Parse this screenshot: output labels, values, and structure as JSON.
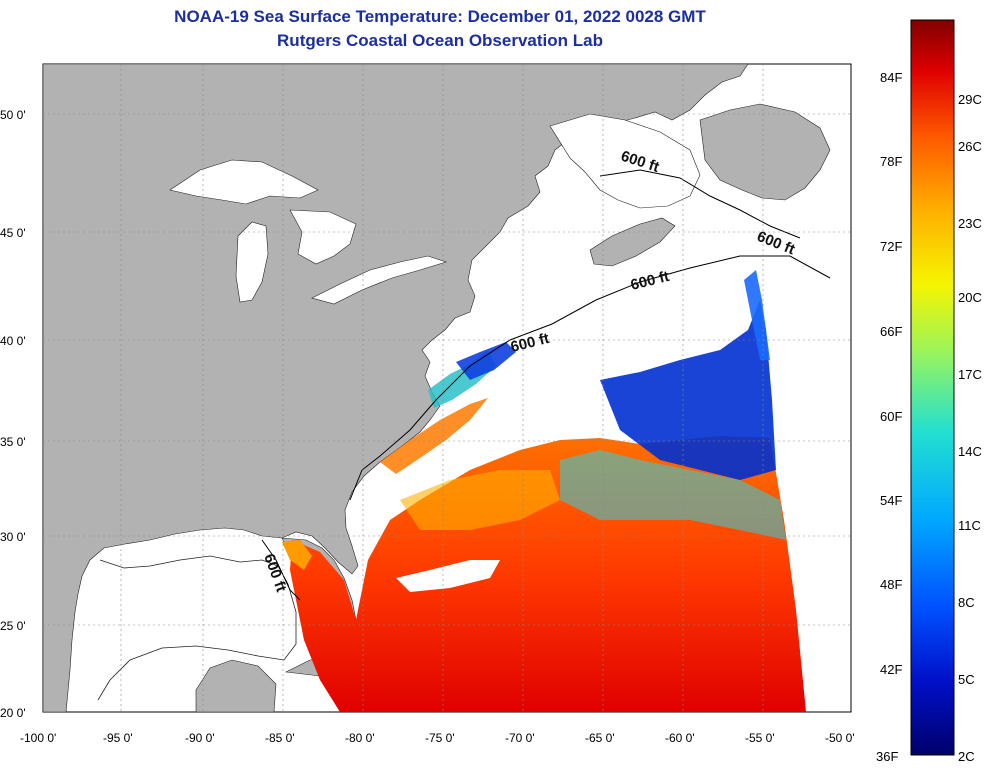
{
  "title": {
    "line1": "NOAA-19 Sea Surface Temperature:  December 01, 2022 0028 GMT",
    "line2": "Rutgers Coastal Ocean Observation Lab"
  },
  "map": {
    "lat_labels": [
      "50 0'",
      "45 0'",
      "40 0'",
      "35 0'",
      "30 0'",
      "25 0'",
      "20 0'"
    ],
    "lon_labels": [
      "-100 0'",
      "-95 0'",
      "-90 0'",
      "-85 0'",
      "-80 0'",
      "-75 0'",
      "-70 0'",
      "-65 0'",
      "-60 0'",
      "-55 0'",
      "-50 0'"
    ],
    "contour_labels": [
      "600 ft",
      "600 ft",
      "600 ft",
      "600 ft",
      "600 ft"
    ],
    "colors": {
      "land": "#b2b2b2",
      "ocean_no_data": "#ffffff",
      "grid": "#888888"
    }
  },
  "colorbar": {
    "fahrenheit_labels": [
      "84F",
      "78F",
      "72F",
      "66F",
      "60F",
      "54F",
      "48F",
      "42F",
      "36F"
    ],
    "celsius_labels": [
      "29C",
      "26C",
      "23C",
      "20C",
      "17C",
      "14C",
      "11C",
      "8C",
      "5C",
      "2C"
    ],
    "colors": [
      "#7f0000",
      "#e00000",
      "#ff5a00",
      "#ffb000",
      "#f5f500",
      "#9cf55a",
      "#22e0d0",
      "#00a8ff",
      "#0050ff",
      "#0010c8",
      "#00006a"
    ]
  }
}
